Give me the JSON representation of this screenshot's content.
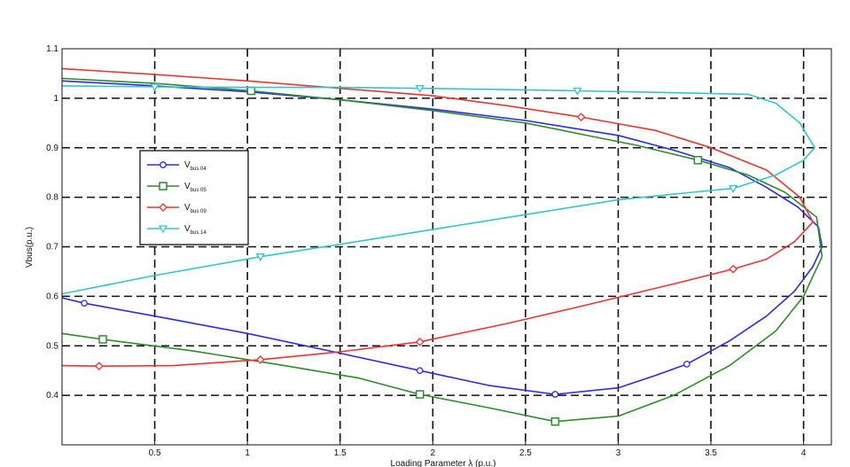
{
  "chart_data": {
    "type": "line",
    "title": "",
    "xlabel": "Loading Parameter λ (p.u.)",
    "ylabel": "Vbus(p.u.)",
    "xlim": [
      0,
      4.15
    ],
    "ylim": [
      0.3,
      1.1
    ],
    "grid": true,
    "legend_position": "left",
    "x_ticks": [
      "0.5",
      "1",
      "1.5",
      "2",
      "2.5",
      "3",
      "3.5",
      "4"
    ],
    "y_ticks": [
      "0.4",
      "0.5",
      "0.6",
      "0.7",
      "0.8",
      "0.9",
      "1",
      "1.1"
    ],
    "colors": {
      "blue": "#2a2aeb",
      "green": "#2e8b2e",
      "red": "#ee3333",
      "cyan": "#33c6c6",
      "grid": "#111111"
    },
    "series": [
      {
        "name": "V",
        "subscript": "bus 04",
        "color": "blue",
        "marker": "circle",
        "points": [
          [
            0,
            0.597
          ],
          [
            0.12,
            0.586
          ],
          [
            0.5,
            0.56
          ],
          [
            1,
            0.525
          ],
          [
            1.5,
            0.485
          ],
          [
            1.93,
            0.45
          ],
          [
            2.3,
            0.42
          ],
          [
            2.66,
            0.402
          ],
          [
            3,
            0.415
          ],
          [
            3.2,
            0.44
          ],
          [
            3.37,
            0.463
          ],
          [
            3.6,
            0.51
          ],
          [
            3.8,
            0.56
          ],
          [
            3.95,
            0.61
          ],
          [
            4.05,
            0.66
          ],
          [
            4.1,
            0.7
          ],
          [
            4.08,
            0.74
          ],
          [
            3.97,
            0.78
          ],
          [
            3.8,
            0.82
          ],
          [
            3.6,
            0.86
          ],
          [
            3.3,
            0.895
          ],
          [
            3,
            0.925
          ],
          [
            2.5,
            0.955
          ],
          [
            2,
            0.978
          ],
          [
            1.5,
            0.997
          ],
          [
            1,
            1.013
          ],
          [
            0.5,
            1.025
          ],
          [
            0,
            1.035
          ]
        ],
        "markers": [
          [
            0.12,
            0.586
          ],
          [
            1.93,
            0.45
          ],
          [
            2.66,
            0.402
          ],
          [
            3.37,
            0.463
          ]
        ]
      },
      {
        "name": "V",
        "subscript": "bus 05",
        "color": "green",
        "marker": "square",
        "points": [
          [
            0,
            0.525
          ],
          [
            0.22,
            0.513
          ],
          [
            0.7,
            0.49
          ],
          [
            1.2,
            0.46
          ],
          [
            1.6,
            0.435
          ],
          [
            1.93,
            0.402
          ],
          [
            2.3,
            0.375
          ],
          [
            2.66,
            0.347
          ],
          [
            3,
            0.358
          ],
          [
            3.3,
            0.4
          ],
          [
            3.6,
            0.46
          ],
          [
            3.85,
            0.53
          ],
          [
            4.0,
            0.6
          ],
          [
            4.1,
            0.68
          ],
          [
            4.07,
            0.76
          ],
          [
            3.9,
            0.81
          ],
          [
            3.7,
            0.845
          ],
          [
            3.43,
            0.875
          ],
          [
            3.1,
            0.905
          ],
          [
            2.5,
            0.95
          ],
          [
            2,
            0.975
          ],
          [
            1.5,
            0.997
          ],
          [
            1.02,
            1.015
          ],
          [
            0.5,
            1.03
          ],
          [
            0,
            1.04
          ]
        ],
        "markers": [
          [
            0.22,
            0.513
          ],
          [
            1.93,
            0.402
          ],
          [
            2.66,
            0.347
          ],
          [
            3.43,
            0.875
          ],
          [
            1.02,
            1.015
          ]
        ]
      },
      {
        "name": "V",
        "subscript": "bus 09",
        "color": "red",
        "marker": "diamond",
        "points": [
          [
            0,
            0.46
          ],
          [
            0.2,
            0.459
          ],
          [
            0.6,
            0.46
          ],
          [
            1.07,
            0.472
          ],
          [
            1.5,
            0.488
          ],
          [
            1.93,
            0.508
          ],
          [
            2.4,
            0.545
          ],
          [
            2.8,
            0.58
          ],
          [
            3.3,
            0.625
          ],
          [
            3.62,
            0.655
          ],
          [
            3.8,
            0.675
          ],
          [
            3.95,
            0.71
          ],
          [
            4.05,
            0.75
          ],
          [
            3.98,
            0.8
          ],
          [
            3.8,
            0.855
          ],
          [
            3.5,
            0.9
          ],
          [
            3.2,
            0.935
          ],
          [
            2.8,
            0.962
          ],
          [
            2.4,
            0.985
          ],
          [
            2,
            1.005
          ],
          [
            1.5,
            1.02
          ],
          [
            1,
            1.035
          ],
          [
            0.5,
            1.048
          ],
          [
            0,
            1.06
          ]
        ],
        "markers": [
          [
            0.2,
            0.459
          ],
          [
            1.07,
            0.472
          ],
          [
            1.93,
            0.508
          ],
          [
            3.62,
            0.655
          ],
          [
            2.8,
            0.962
          ]
        ]
      },
      {
        "name": "V",
        "subscript": "bus 14",
        "color": "cyan",
        "marker": "triangle",
        "points": [
          [
            0,
            0.605
          ],
          [
            0.5,
            0.642
          ],
          [
            1.07,
            0.68
          ],
          [
            1.5,
            0.705
          ],
          [
            2,
            0.735
          ],
          [
            2.5,
            0.765
          ],
          [
            3,
            0.795
          ],
          [
            3.4,
            0.81
          ],
          [
            3.62,
            0.818
          ],
          [
            3.85,
            0.845
          ],
          [
            4.0,
            0.875
          ],
          [
            4.06,
            0.9
          ],
          [
            3.98,
            0.95
          ],
          [
            3.85,
            0.99
          ],
          [
            3.7,
            1.008
          ],
          [
            3.2,
            1.012
          ],
          [
            2.78,
            1.015
          ],
          [
            2.3,
            1.018
          ],
          [
            1.93,
            1.02
          ],
          [
            1.5,
            1.022
          ],
          [
            1,
            1.022
          ],
          [
            0.5,
            1.023
          ],
          [
            0,
            1.025
          ]
        ],
        "markers": [
          [
            1.07,
            0.68
          ],
          [
            3.62,
            0.818
          ],
          [
            2.78,
            1.015
          ],
          [
            1.93,
            1.02
          ],
          [
            0.5,
            1.023
          ]
        ]
      }
    ]
  }
}
